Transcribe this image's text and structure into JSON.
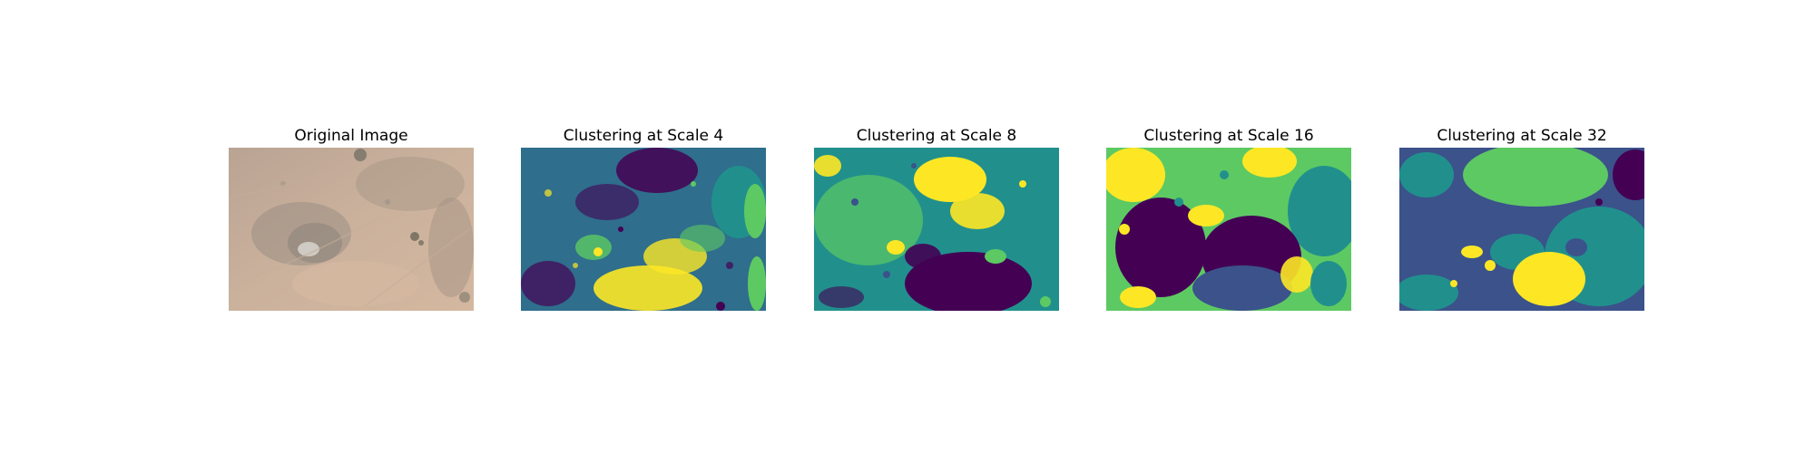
{
  "figure": {
    "panels": [
      {
        "title": "Original Image",
        "kind": "photo",
        "icon": "aerial-terrain-photo"
      },
      {
        "title": "Clustering at Scale 4",
        "kind": "cluster",
        "icon": "cluster-map-scale-4"
      },
      {
        "title": "Clustering at Scale 8",
        "kind": "cluster",
        "icon": "cluster-map-scale-8"
      },
      {
        "title": "Clustering at Scale 16",
        "kind": "cluster",
        "icon": "cluster-map-scale-16"
      },
      {
        "title": "Clustering at Scale 32",
        "kind": "cluster",
        "icon": "cluster-map-scale-32"
      }
    ],
    "colors": {
      "purple": "#440154",
      "blue": "#3b528b",
      "teal": "#21908d",
      "green": "#5dc963",
      "yellow": "#fde725",
      "terrain_light": "#cfb59e",
      "terrain_mid": "#b89c86",
      "terrain_dark": "#8f8479"
    }
  }
}
